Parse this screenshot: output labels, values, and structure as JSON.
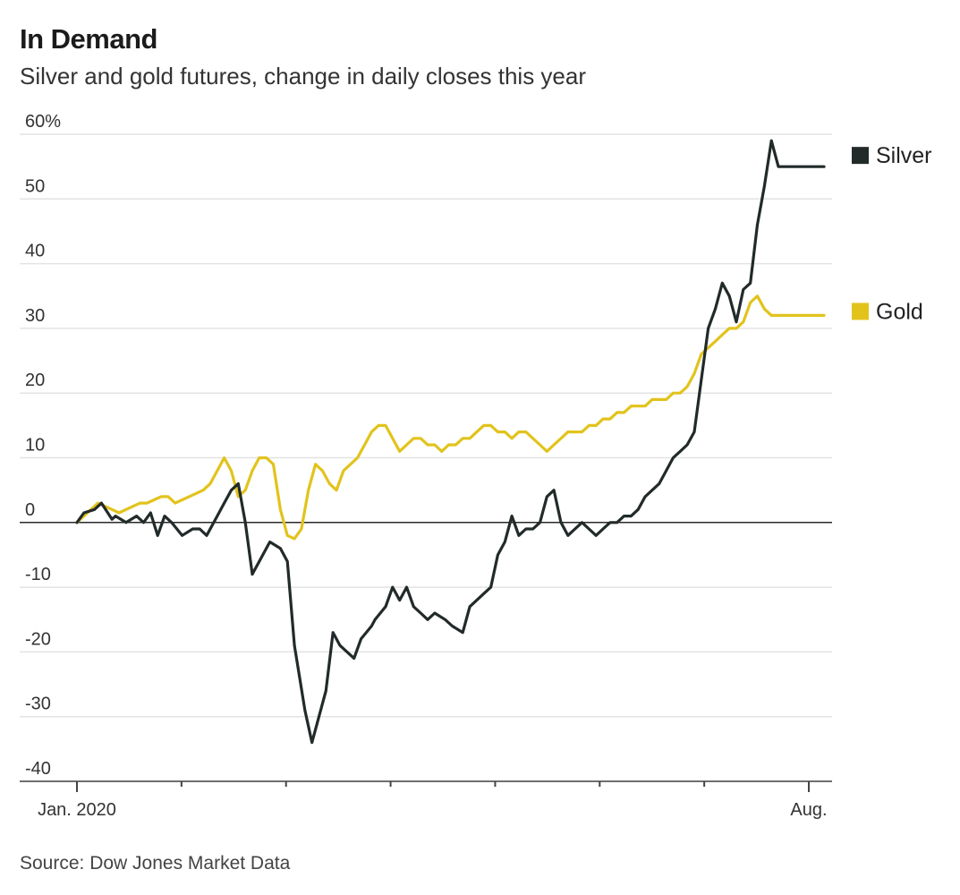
{
  "chart_data": {
    "type": "line",
    "title": "In Demand",
    "subtitle": "Silver and gold futures, change in daily closes this year",
    "source": "Source: Dow Jones Market Data",
    "x_start": "Jan. 2020",
    "x_end": "Aug.",
    "x_tick_labels": [
      "Jan. 2020",
      "",
      "",
      "",
      "",
      "",
      "",
      "Aug."
    ],
    "y_ticks": [
      60,
      50,
      40,
      30,
      20,
      10,
      0,
      -10,
      -20,
      -30,
      -40
    ],
    "y_tick_labels": [
      "60%",
      "50",
      "40",
      "30",
      "20",
      "10",
      "0",
      "-10",
      "-20",
      "-30",
      "-40"
    ],
    "ylim": [
      -40,
      60
    ],
    "grid": true,
    "legend": "right",
    "series": [
      {
        "name": "Silver",
        "color": "#222a2a",
        "x": [
          0,
          2,
          5,
          7,
          10,
          11,
          14,
          17,
          19,
          21,
          23,
          25,
          27,
          30,
          33,
          35,
          37,
          40,
          42,
          44,
          46,
          48,
          50,
          52,
          55,
          58,
          60,
          62,
          65,
          67,
          69,
          71,
          73,
          75,
          77,
          79,
          81,
          84,
          85,
          88,
          90,
          92,
          94,
          96,
          98,
          100,
          102,
          105,
          107,
          110,
          112,
          114,
          116,
          118,
          120,
          122,
          124,
          126,
          128,
          130,
          132,
          134,
          136,
          138,
          140,
          142,
          144,
          146,
          148,
          150,
          152,
          154,
          156,
          158,
          160,
          162,
          164,
          166,
          168,
          170,
          172,
          174,
          176,
          178,
          180,
          182,
          184,
          186,
          188,
          190,
          192,
          194,
          196,
          198,
          200,
          202,
          204,
          206,
          208,
          210,
          212,
          213
        ],
        "values": [
          0,
          1.5,
          2,
          3,
          0.5,
          1,
          0,
          1,
          0,
          1.5,
          -2,
          1,
          0,
          -2,
          -1,
          -1,
          -2,
          1,
          3,
          5,
          6,
          0,
          -8,
          -6,
          -3,
          -4,
          -6,
          -19,
          -29,
          -34,
          -30,
          -26,
          -17,
          -19,
          -20,
          -21,
          -18,
          -16,
          -15,
          -13,
          -10,
          -12,
          -10,
          -13,
          -14,
          -15,
          -14,
          -15,
          -16,
          -17,
          -13,
          -12,
          -11,
          -10,
          -5,
          -3,
          1,
          -2,
          -1,
          -1,
          0,
          4,
          5,
          0,
          -2,
          -1,
          0,
          -1,
          -2,
          -1,
          0,
          0,
          1,
          1,
          2,
          4,
          5,
          6,
          8,
          10,
          11,
          12,
          14,
          22,
          30,
          33,
          37,
          35,
          31,
          36,
          37,
          46,
          52,
          59,
          55,
          55,
          55,
          55,
          55,
          55,
          55,
          55
        ]
      },
      {
        "name": "Gold",
        "color": "#e2c31c",
        "x": [
          0,
          2,
          4,
          6,
          8,
          10,
          12,
          14,
          16,
          18,
          20,
          22,
          24,
          26,
          28,
          30,
          32,
          34,
          36,
          38,
          40,
          42,
          44,
          46,
          48,
          50,
          52,
          54,
          56,
          58,
          60,
          62,
          64,
          66,
          68,
          70,
          72,
          74,
          76,
          78,
          80,
          82,
          84,
          86,
          88,
          90,
          92,
          94,
          96,
          98,
          100,
          102,
          104,
          106,
          108,
          110,
          112,
          114,
          116,
          118,
          120,
          122,
          124,
          126,
          128,
          130,
          132,
          134,
          136,
          138,
          140,
          142,
          144,
          146,
          148,
          150,
          152,
          154,
          156,
          158,
          160,
          162,
          164,
          166,
          168,
          170,
          172,
          174,
          176,
          178,
          180,
          182,
          184,
          186,
          188,
          190,
          192,
          194,
          196,
          198,
          200,
          202,
          204,
          206,
          208,
          210,
          212,
          213
        ],
        "values": [
          0,
          1,
          2,
          3,
          2.5,
          2,
          1.5,
          2,
          2.5,
          3,
          3,
          3.5,
          4,
          4,
          3,
          3.5,
          4,
          4.5,
          5,
          6,
          8,
          10,
          8,
          4,
          5,
          8,
          10,
          10,
          9,
          2,
          -2,
          -2.5,
          -1,
          5,
          9,
          8,
          6,
          5,
          8,
          9,
          10,
          12,
          14,
          15,
          15,
          13,
          11,
          12,
          13,
          13,
          12,
          12,
          11,
          12,
          12,
          13,
          13,
          14,
          15,
          15,
          14,
          14,
          13,
          14,
          14,
          13,
          12,
          11,
          12,
          13,
          14,
          14,
          14,
          15,
          15,
          16,
          16,
          17,
          17,
          18,
          18,
          18,
          19,
          19,
          19,
          20,
          20,
          21,
          23,
          26,
          27,
          28,
          29,
          30,
          30,
          31,
          34,
          35,
          33,
          32,
          32,
          32,
          32,
          32,
          32,
          32,
          32,
          32
        ]
      }
    ]
  }
}
